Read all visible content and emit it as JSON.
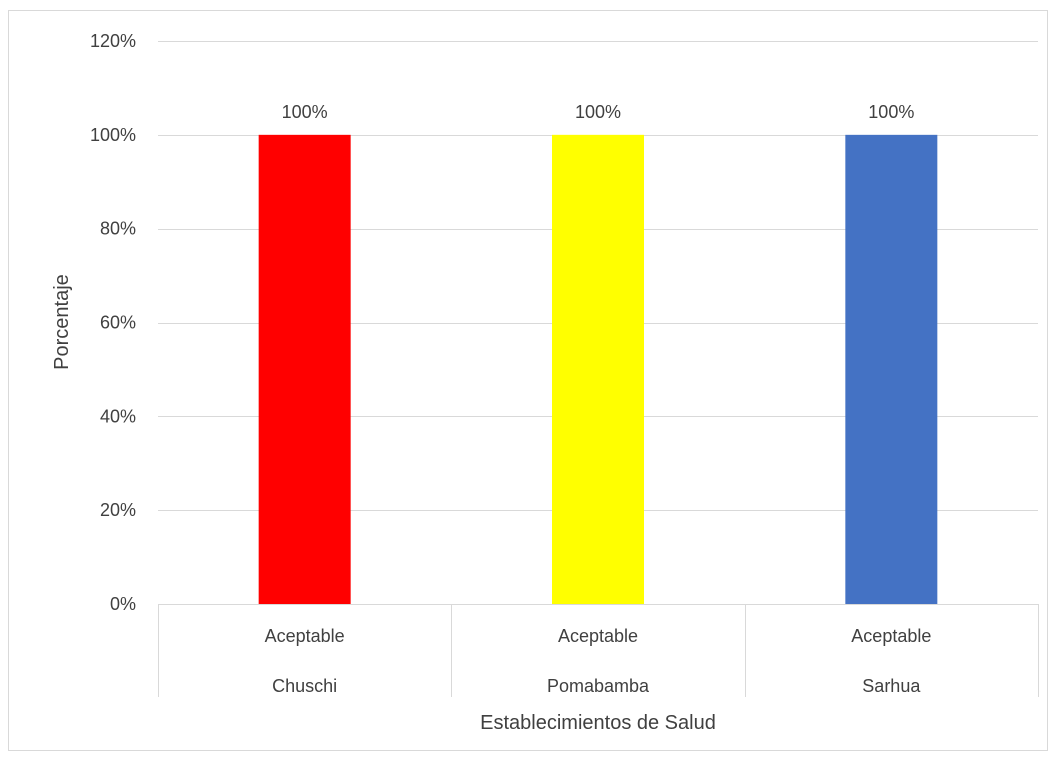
{
  "chart_data": {
    "type": "bar",
    "title": "",
    "xlabel": "Establecimientos de Salud",
    "ylabel": "Porcentaje",
    "ylim": [
      0,
      120
    ],
    "y_ticks": [
      "0%",
      "20%",
      "40%",
      "60%",
      "80%",
      "100%",
      "120%"
    ],
    "y_tick_values": [
      0,
      20,
      40,
      60,
      80,
      100,
      120
    ],
    "grid": true,
    "legend": "none",
    "categories": [
      {
        "sub": "Aceptable",
        "group": "Chuschi"
      },
      {
        "sub": "Aceptable",
        "group": "Pomabamba"
      },
      {
        "sub": "Aceptable",
        "group": "Sarhua"
      }
    ],
    "values": [
      100,
      100,
      100
    ],
    "data_labels": [
      "100%",
      "100%",
      "100%"
    ],
    "colors": [
      "#ff0000",
      "#ffff00",
      "#4472c4"
    ]
  }
}
